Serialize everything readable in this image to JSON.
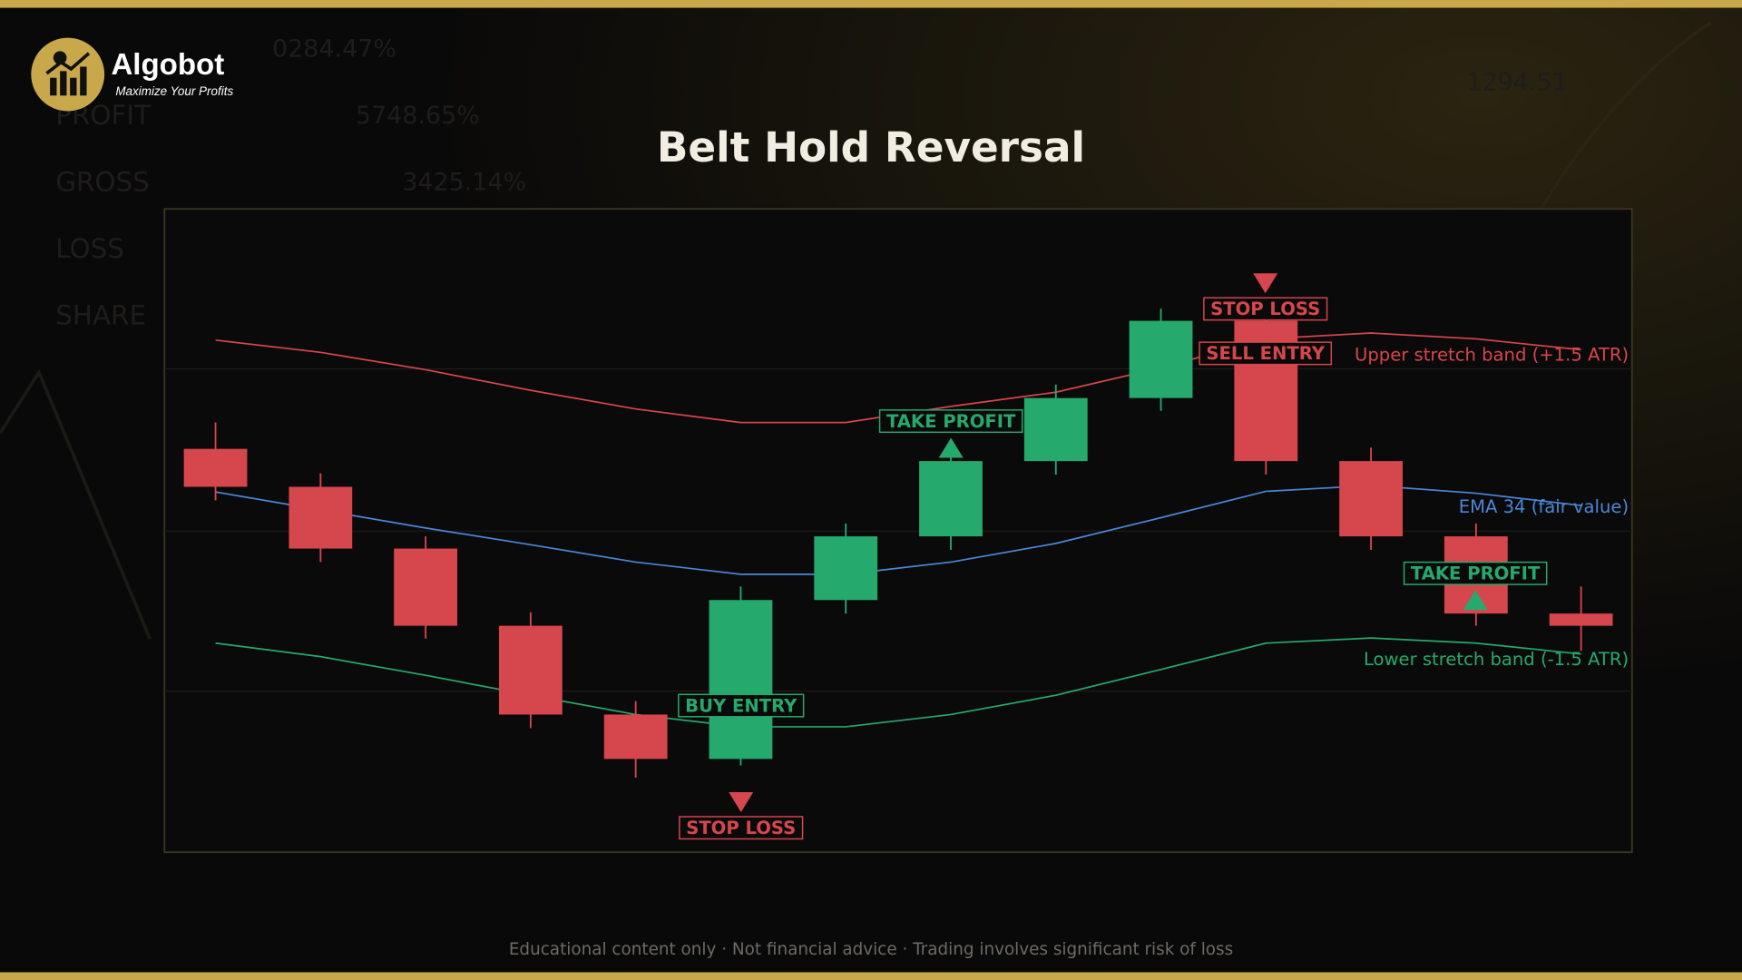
{
  "brand": {
    "name": "Algobot",
    "tagline": "Maximize Your Profits"
  },
  "background": {
    "labels": [
      "PROFIT",
      "GROSS",
      "LOSS",
      "SHARE"
    ],
    "numbers": [
      "0284.47%",
      "5748.65%",
      "3425.14%",
      "1294.51"
    ]
  },
  "chart_data": {
    "type": "candlestick",
    "title": "Belt Hold Reversal",
    "ylim": [
      0,
      100
    ],
    "up_color": "#26a96c",
    "down_color": "#d6464d",
    "open": [
      62.7,
      56.8,
      47.2,
      35.2,
      21.4,
      14.5,
      39.2,
      49.1,
      60.8,
      70.6,
      82.6,
      60.8,
      49.1,
      37.1
    ],
    "close": [
      56.8,
      47.2,
      35.2,
      21.4,
      14.5,
      39.2,
      49.1,
      60.8,
      70.6,
      82.6,
      60.8,
      49.1,
      37.1,
      35.2
    ],
    "high": [
      66.8,
      58.9,
      49.1,
      37.3,
      23.5,
      41.3,
      51.1,
      62.9,
      72.7,
      84.5,
      84.5,
      62.9,
      51.1,
      41.3
    ],
    "low": [
      54.7,
      45.1,
      33.2,
      19.3,
      11.6,
      13.5,
      37.1,
      47.0,
      58.7,
      68.6,
      58.7,
      47.0,
      35.2,
      31.3
    ],
    "series": [
      {
        "name": "Upper stretch band (+1.5 ATR)",
        "color": "#d6464d",
        "values": [
          79.6,
          77.7,
          75.0,
          71.8,
          68.9,
          66.8,
          66.8,
          69.3,
          71.5,
          75.3,
          79.8,
          80.7,
          79.8,
          78.1
        ]
      },
      {
        "name": "EMA 34 (fair value)",
        "color": "#4a86d8",
        "values": [
          56.0,
          53.2,
          50.4,
          47.8,
          45.1,
          43.2,
          43.2,
          45.1,
          48.0,
          52.0,
          56.1,
          57.0,
          55.8,
          53.9
        ]
      },
      {
        "name": "Lower stretch band (-1.5 ATR)",
        "color": "#26a96c",
        "values": [
          32.5,
          30.4,
          27.5,
          24.4,
          21.4,
          19.5,
          19.5,
          21.4,
          24.4,
          28.4,
          32.5,
          33.3,
          32.5,
          30.8
        ]
      }
    ],
    "annotations": [
      {
        "text": "STOP LOSS",
        "color": "#d6464d"
      },
      {
        "text": "SELL ENTRY",
        "color": "#d6464d"
      },
      {
        "text": "TAKE PROFIT",
        "color": "#26a96c"
      },
      {
        "text": "BUY ENTRY",
        "color": "#26a96c"
      },
      {
        "text": "STOP LOSS",
        "color": "#d6464d"
      },
      {
        "text": "TAKE PROFIT",
        "color": "#26a96c"
      }
    ]
  },
  "footer": [
    "Educational content only",
    "Not financial advice",
    "Trading involves significant risk of loss"
  ]
}
